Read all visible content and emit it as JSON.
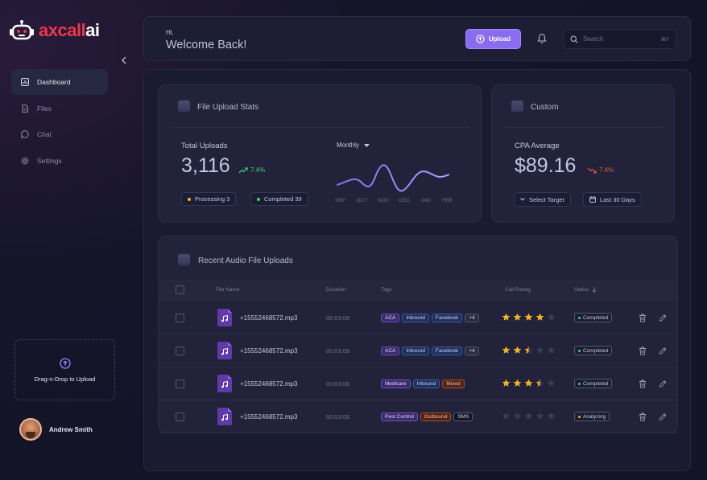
{
  "brand": {
    "name_a": "axcall",
    "name_b": "ai"
  },
  "sidebar": {
    "items": [
      {
        "label": "Dashboard",
        "icon": "dashboard-icon",
        "active": true
      },
      {
        "label": "Files",
        "icon": "file-icon",
        "active": false
      },
      {
        "label": "Chat",
        "icon": "chat-icon",
        "active": false
      },
      {
        "label": "Settings",
        "icon": "gear-icon",
        "active": false
      }
    ],
    "dropzone_label": "Drag-n-Drop to Upload",
    "user_name": "Andrew Smith"
  },
  "header": {
    "greeting": "Hi,",
    "welcome": "Welcome Back!",
    "upload_label": "Upload",
    "search_placeholder": "Search",
    "search_shortcut": "⌘F"
  },
  "stats": {
    "title": "File Upload Stats",
    "total_label": "Total Uploads",
    "total_value": "3,116",
    "trend": "7.4%",
    "processing": "Processing 3",
    "completed": "Completed 39",
    "period": "Monthly",
    "months": [
      "SEP",
      "OCT",
      "NOV",
      "DEC",
      "JAN",
      "FEB"
    ]
  },
  "custom": {
    "title": "Custom",
    "cpa_label": "CPA Average",
    "cpa_value": "$89.16",
    "trend": "7.4%",
    "target_label": "Select Target",
    "range_label": "Last 30 Days"
  },
  "table": {
    "title": "Recent Audio File Uploads",
    "headers": {
      "file": "File Name",
      "duration": "Duration",
      "tags": "Tags",
      "rating": "Call Rating",
      "status": "Status"
    },
    "rows": [
      {
        "file": "+15552468572.mp3",
        "duration": "00:03:06",
        "tags": [
          "ACA",
          "Inbound",
          "Facebook",
          "+4"
        ],
        "rating": 4,
        "status": "Completed"
      },
      {
        "file": "+15552468572.mp3",
        "duration": "00:03:06",
        "tags": [
          "ACA",
          "Inbound",
          "Facebook",
          "+4"
        ],
        "rating": 2.5,
        "status": "Completed"
      },
      {
        "file": "+15552468572.mp3",
        "duration": "00:03:06",
        "tags": [
          "Medicare",
          "Inbound",
          "Mixed"
        ],
        "rating": 3.5,
        "status": "Completed"
      },
      {
        "file": "+15552468572.mp3",
        "duration": "00:03:06",
        "tags": [
          "Pest Control",
          "Outbound",
          "SMS"
        ],
        "rating": 0,
        "status": "Analyzing"
      }
    ]
  },
  "colors": {
    "accent": "#8a6cf0",
    "brand_red": "#e8394a",
    "up_green": "#3fcf7f",
    "down_red": "#e5533d",
    "completed": "#3fcf7f",
    "analyzing": "#f0b429",
    "star": "#f0b429"
  }
}
